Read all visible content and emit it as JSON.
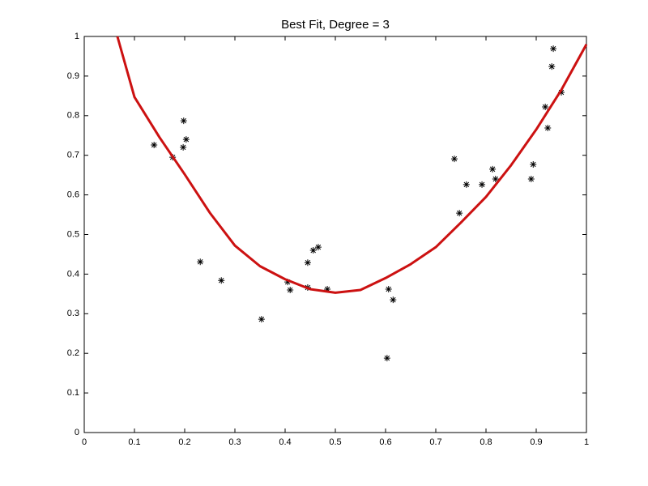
{
  "chart_data": {
    "type": "scatter",
    "title": "Best Fit, Degree = 3",
    "xlim": [
      0,
      1
    ],
    "ylim": [
      0,
      1
    ],
    "xticks": [
      0,
      0.1,
      0.2,
      0.3,
      0.4,
      0.5,
      0.6,
      0.7,
      0.8,
      0.9,
      1
    ],
    "yticks": [
      0,
      0.1,
      0.2,
      0.3,
      0.4,
      0.5,
      0.6,
      0.7,
      0.8,
      0.9,
      1
    ],
    "grid": false,
    "series": [
      {
        "type": "scatter",
        "marker": "*",
        "color": "#000000",
        "x": [
          0.139,
          0.176,
          0.198,
          0.197,
          0.203,
          0.231,
          0.273,
          0.353,
          0.405,
          0.41,
          0.445,
          0.445,
          0.456,
          0.466,
          0.484,
          0.606,
          0.615,
          0.603,
          0.737,
          0.747,
          0.761,
          0.792,
          0.813,
          0.819,
          0.89,
          0.894,
          0.918,
          0.923,
          0.931,
          0.934,
          0.95
        ],
        "values": [
          0.726,
          0.695,
          0.787,
          0.72,
          0.74,
          0.431,
          0.384,
          0.286,
          0.38,
          0.36,
          0.429,
          0.366,
          0.46,
          0.468,
          0.362,
          0.362,
          0.335,
          0.188,
          0.691,
          0.554,
          0.626,
          0.626,
          0.665,
          0.64,
          0.64,
          0.677,
          0.822,
          0.769,
          0.924,
          0.969,
          0.859
        ]
      },
      {
        "type": "line",
        "color": "#cc1111",
        "x": [
          0.066,
          0.1,
          0.15,
          0.2,
          0.25,
          0.3,
          0.35,
          0.4,
          0.45,
          0.5,
          0.55,
          0.6,
          0.65,
          0.7,
          0.75,
          0.8,
          0.85,
          0.9,
          0.95,
          1
        ],
        "values": [
          1.0,
          0.847,
          0.745,
          0.652,
          0.555,
          0.472,
          0.42,
          0.387,
          0.362,
          0.353,
          0.36,
          0.39,
          0.425,
          0.468,
          0.53,
          0.595,
          0.675,
          0.765,
          0.865,
          0.98
        ]
      }
    ]
  }
}
